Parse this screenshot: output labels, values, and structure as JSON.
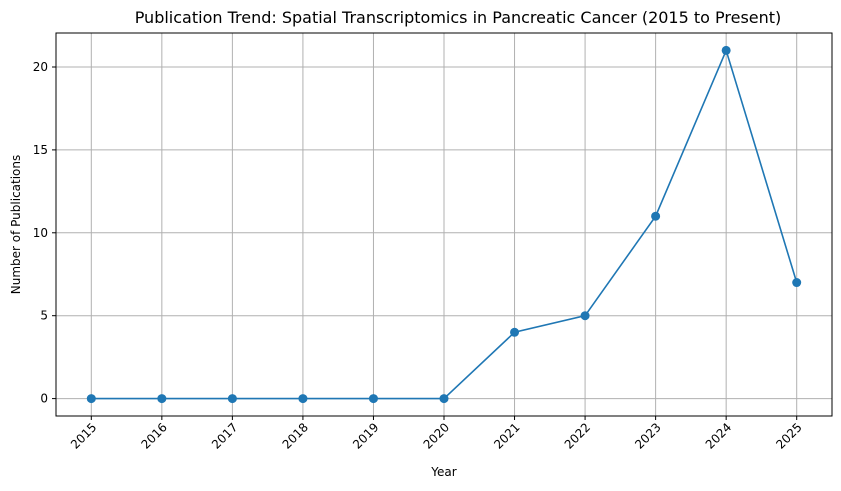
{
  "chart_data": {
    "type": "line",
    "title": "Publication Trend: Spatial Transcriptomics in Pancreatic Cancer (2015 to Present)",
    "xlabel": "Year",
    "ylabel": "Number of Publications",
    "x": [
      "2015",
      "2016",
      "2017",
      "2018",
      "2019",
      "2020",
      "2021",
      "2022",
      "2023",
      "2024",
      "2025"
    ],
    "series": [
      {
        "values": [
          0,
          0,
          0,
          0,
          0,
          0,
          4,
          5,
          11,
          21,
          7
        ],
        "color": "#1f77b4",
        "marker": "circle"
      }
    ],
    "y_ticks": [
      0,
      5,
      10,
      15,
      20
    ],
    "ylim": [
      -1.05,
      22.05
    ],
    "grid": true,
    "x_tick_rotation": 45
  }
}
